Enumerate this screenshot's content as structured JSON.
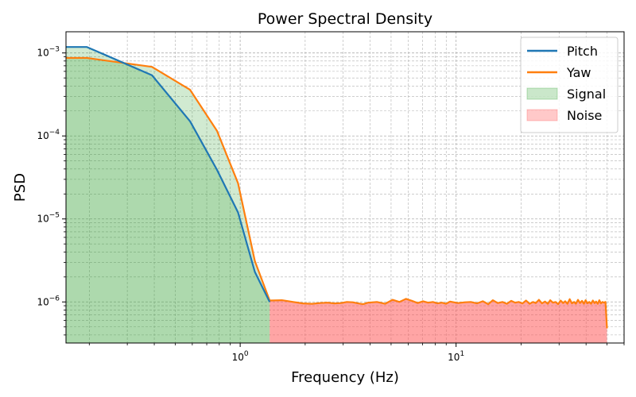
{
  "chart_data": {
    "type": "line",
    "title": "Power Spectral Density",
    "xlabel": "Frequency (Hz)",
    "ylabel": "PSD",
    "x_scale": "log",
    "y_scale": "log",
    "xlim": [
      0.156,
      60
    ],
    "ylim": [
      3.2e-07,
      0.0018
    ],
    "x_ticks": [
      {
        "value": 1,
        "label": "10^0"
      },
      {
        "value": 10,
        "label": "10^1"
      }
    ],
    "y_ticks": [
      {
        "value": 1e-06,
        "label": "10^-6"
      },
      {
        "value": 1e-05,
        "label": "10^-5"
      },
      {
        "value": 0.0001,
        "label": "10^-4"
      },
      {
        "value": 0.001,
        "label": "10^-3"
      }
    ],
    "grid": true,
    "legend_position": "top-right",
    "signal_band": [
      0.156,
      1.4
    ],
    "noise_band": [
      1.4,
      50
    ],
    "legend": [
      {
        "label": "Pitch",
        "kind": "line",
        "color": "#1f77b4"
      },
      {
        "label": "Yaw",
        "kind": "line",
        "color": "#ff7f0e"
      },
      {
        "label": "Signal",
        "kind": "patch",
        "color": "#2ca02c"
      },
      {
        "label": "Noise",
        "kind": "patch",
        "color": "#ff4c4c"
      }
    ],
    "series": [
      {
        "name": "Pitch",
        "color": "#1f77b4",
        "x": [
          0.156,
          0.195,
          0.39,
          0.586,
          0.781,
          0.977,
          1.17,
          1.37
        ],
        "y": [
          0.00118,
          0.00118,
          0.00054,
          0.00015,
          3.9e-05,
          1.2e-05,
          2.3e-06,
          1e-06
        ]
      },
      {
        "name": "Yaw",
        "color": "#ff7f0e",
        "x": [
          0.156,
          0.195,
          0.39,
          0.586,
          0.781,
          0.977,
          1.17,
          1.37,
          1.56,
          1.76,
          1.95,
          2.15,
          2.34,
          2.54,
          2.73,
          2.93,
          3.12,
          3.32,
          3.52,
          3.71,
          3.91,
          4.3,
          4.69,
          5.08,
          5.47,
          5.86,
          6.25,
          6.64,
          7.03,
          7.42,
          7.81,
          8.2,
          8.59,
          8.98,
          9.38,
          10.2,
          11.0,
          11.7,
          12.5,
          13.3,
          14.1,
          14.8,
          15.6,
          16.4,
          17.2,
          18.0,
          18.8,
          19.5,
          20.3,
          21.1,
          21.9,
          22.7,
          23.4,
          24.2,
          25.0,
          25.8,
          26.6,
          27.3,
          28.1,
          28.9,
          29.7,
          30.5,
          31.3,
          32.0,
          32.8,
          33.6,
          34.4,
          35.2,
          35.9,
          36.7,
          37.5,
          38.3,
          39.1,
          39.8,
          40.6,
          41.4,
          42.2,
          43.0,
          43.8,
          44.5,
          45.3,
          46.1,
          46.9,
          47.7,
          48.4,
          49.2,
          50.0
        ],
        "y": [
          0.00087,
          0.00087,
          0.00068,
          0.00036,
          0.000115,
          2.7e-05,
          3.1e-06,
          1.04e-06,
          1.05e-06,
          1e-06,
          9.6e-07,
          9.5e-07,
          9.7e-07,
          9.8e-07,
          9.6e-07,
          9.7e-07,
          1e-06,
          9.9e-07,
          9.6e-07,
          9.4e-07,
          9.8e-07,
          1e-06,
          9.5e-07,
          1.06e-06,
          1e-06,
          1.09e-06,
          1.03e-06,
          9.7e-07,
          1.02e-06,
          9.8e-07,
          1e-06,
          9.6e-07,
          9.8e-07,
          9.5e-07,
          1.01e-06,
          9.7e-07,
          9.9e-07,
          1e-06,
          9.6e-07,
          1.02e-06,
          9.4e-07,
          1.05e-06,
          9.7e-07,
          1e-06,
          9.5e-07,
          1.03e-06,
          9.8e-07,
          1e-06,
          9.6e-07,
          1.04e-06,
          9.5e-07,
          1e-06,
          9.7e-07,
          1.06e-06,
          9.6e-07,
          1.01e-06,
          9.5e-07,
          1.05e-06,
          9.8e-07,
          1e-06,
          9.4e-07,
          1.04e-06,
          9.7e-07,
          1.02e-06,
          9.5e-07,
          1.08e-06,
          9.6e-07,
          1e-06,
          9.5e-07,
          1.06e-06,
          9.7e-07,
          1.03e-06,
          9.5e-07,
          1.05e-06,
          9.6e-07,
          1e-06,
          9.5e-07,
          1.04e-06,
          9.7e-07,
          1.01e-06,
          9.5e-07,
          1.05e-06,
          9.6e-07,
          1e-06,
          9.8e-07,
          1e-06,
          4.8e-07
        ]
      }
    ]
  }
}
